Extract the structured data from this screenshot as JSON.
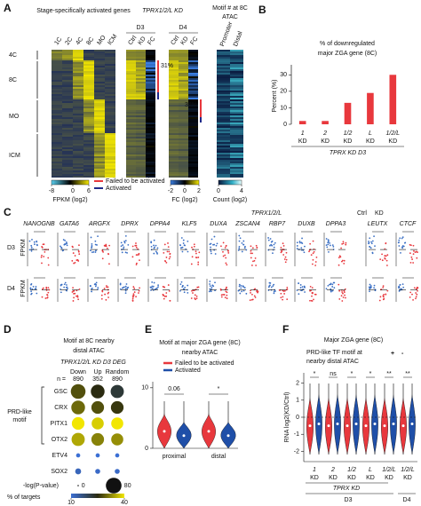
{
  "panel_a": {
    "letter": "A",
    "heatmap_title": "Stage-specifically activated genes",
    "stages": [
      "1C",
      "2C",
      "4C",
      "8C",
      "MO",
      "ICM"
    ],
    "row_groups": [
      "4C",
      "8C",
      "MO",
      "ICM"
    ],
    "kd_title": "TPRX1/2/L KD",
    "days": [
      "D3",
      "D4"
    ],
    "kd_columns": [
      "Ctrl",
      "KD",
      "FC"
    ],
    "percents": [
      "31%",
      "36%"
    ],
    "motif_title": [
      "Motif # at 8C",
      "ATAC"
    ],
    "motif_columns": [
      "Promoter",
      "Distal"
    ],
    "fpkm_scale": {
      "label": "FPKM (log2)",
      "lim": [
        -8,
        6
      ],
      "ticks": [
        -8,
        0,
        6
      ]
    },
    "fc_scale": {
      "label": "FC (log2)",
      "lim": [
        -2,
        2
      ],
      "ticks": [
        -2,
        0,
        2
      ]
    },
    "count_scale": {
      "label": "Count (log2)",
      "lim": [
        0,
        4
      ],
      "ticks": [
        0,
        4
      ]
    },
    "legend": [
      {
        "name": "Failed to be activated",
        "color": "#e8383d"
      },
      {
        "name": "Activated",
        "color": "#1f2a8a"
      }
    ]
  },
  "chart_data": [
    {
      "type": "bar",
      "letter": "B",
      "title": [
        "% of downregulated",
        "major ZGA gene (8C)"
      ],
      "y_label": "Percent (%)",
      "categories": [
        "1",
        "2",
        "1/2",
        "L",
        "1/2/L"
      ],
      "category_unit": "KD",
      "x_label": "TPRX KD D3",
      "values": [
        2,
        2,
        13,
        19,
        30
      ],
      "color": "#e8383d",
      "ylim": [
        0,
        35
      ],
      "yticks": [
        0,
        10,
        20,
        30
      ]
    },
    {
      "type": "dot-matrix",
      "letter": "D",
      "title": [
        "Motif at 8C nearby",
        "distal ATAC"
      ],
      "subtitle": "TPRX1/2/L KD D3 DEG",
      "columns": [
        "Down",
        "Up",
        "Random"
      ],
      "n_label": "n =",
      "n": [
        890,
        352,
        890
      ],
      "group_label": [
        "PRD-like",
        "motif"
      ],
      "rows": [
        "GSC",
        "CRX",
        "PITX1",
        "OTX2",
        "ETV4",
        "SOX2"
      ],
      "size_values": [
        [
          70,
          60,
          55
        ],
        [
          60,
          50,
          50
        ],
        [
          50,
          45,
          45
        ],
        [
          55,
          50,
          45
        ],
        [
          3,
          3,
          3
        ],
        [
          8,
          5,
          5
        ]
      ],
      "color_values": [
        [
          28,
          25,
          22
        ],
        [
          30,
          28,
          26
        ],
        [
          40,
          38,
          40
        ],
        [
          35,
          32,
          33
        ],
        [
          10,
          10,
          10
        ],
        [
          12,
          11,
          11
        ]
      ],
      "size_label": "-log(P-value)",
      "size_legend": [
        0,
        80
      ],
      "color_label": "% of targets",
      "color_lim": [
        10,
        40
      ],
      "color_ticks": [
        10,
        40
      ]
    }
  ],
  "panel_c": {
    "letter": "C",
    "title": "TPRX1/2/L",
    "legend": [
      {
        "name": "Ctrl",
        "color": "#3a6fc4"
      },
      {
        "name": "KD",
        "color": "#e8383d"
      }
    ],
    "genes": [
      "NANOGNB",
      "GATA6",
      "ARGFX",
      "DPRX",
      "DPPA4",
      "KLF5",
      "DUXA",
      "ZSCAN4",
      "RBP7",
      "DUXB",
      "DPPA3",
      "LEUTX",
      "CTCF"
    ],
    "days": [
      "D3",
      "D4"
    ],
    "y_label": "FPKM"
  },
  "panel_e": {
    "letter": "E",
    "title": [
      "Motif at major ZGA gene (8C)",
      "nearby ATAC"
    ],
    "legend": [
      {
        "name": "Failed to be activated",
        "color": "#e8383d"
      },
      {
        "name": "Activated",
        "color": "#1f4fa8"
      }
    ],
    "ylim": [
      0,
      11
    ],
    "yticks": [
      0,
      10
    ],
    "groups": [
      "proximal",
      "distal"
    ],
    "significance": [
      "0.06",
      "*"
    ]
  },
  "panel_f": {
    "letter": "F",
    "title": "Major ZGA gene (8C)",
    "legend_title": [
      "PRD-like TF motif at",
      "nearby distal ATAC"
    ],
    "legend": [
      {
        "name": "+",
        "color": "#e8383d"
      },
      {
        "name": "-",
        "color": "#1f4fa8"
      }
    ],
    "y_label": "RNA log2(KD/Ctrl)",
    "ylim": [
      -2.6,
      2.6
    ],
    "yticks": [
      -2,
      -1,
      0,
      1,
      2
    ],
    "groups": [
      "1",
      "2",
      "1/2",
      "L",
      "1/2/L",
      "1/2/L"
    ],
    "group_unit": "KD",
    "condition": "TPRX KD",
    "days": [
      "D3",
      "D4"
    ],
    "significance": [
      "*",
      "ns",
      "*",
      "*",
      "**",
      "**"
    ]
  }
}
